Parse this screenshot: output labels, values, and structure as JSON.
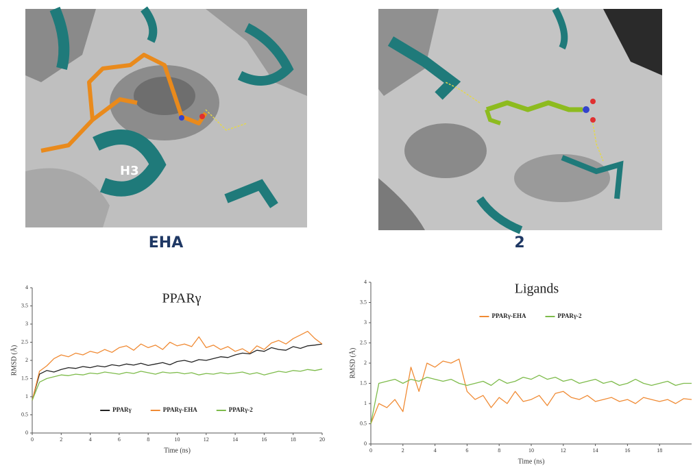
{
  "panels": [
    {
      "label": "EHA",
      "annotation": "H3"
    },
    {
      "label": "2"
    }
  ],
  "chart_data": [
    {
      "type": "line",
      "title": "PPARγ",
      "x_label": "Time (ns)",
      "y_label": "RMSD (Å)",
      "x": [
        0,
        0.5,
        1,
        1.5,
        2,
        2.5,
        3,
        3.5,
        4,
        4.5,
        5,
        5.5,
        6,
        6.5,
        7,
        7.5,
        8,
        8.5,
        9,
        9.5,
        10,
        10.5,
        11,
        11.5,
        12,
        12.5,
        13,
        13.5,
        14,
        14.5,
        15,
        15.5,
        16,
        16.5,
        17,
        17.5,
        18,
        18.5,
        19,
        19.5,
        20
      ],
      "series": [
        {
          "name": "PPARγ",
          "color": "#222222",
          "values": [
            0.9,
            1.62,
            1.72,
            1.68,
            1.75,
            1.8,
            1.78,
            1.83,
            1.8,
            1.85,
            1.82,
            1.88,
            1.85,
            1.9,
            1.87,
            1.92,
            1.86,
            1.9,
            1.94,
            1.88,
            1.97,
            2.0,
            1.95,
            2.02,
            2.0,
            2.05,
            2.1,
            2.08,
            2.15,
            2.2,
            2.18,
            2.28,
            2.25,
            2.35,
            2.3,
            2.28,
            2.38,
            2.33,
            2.4,
            2.42,
            2.45
          ]
        },
        {
          "name": "PPARγ-EHA",
          "color": "#f08a33",
          "values": [
            0.9,
            1.7,
            1.85,
            2.05,
            2.15,
            2.1,
            2.2,
            2.15,
            2.25,
            2.2,
            2.3,
            2.22,
            2.35,
            2.4,
            2.28,
            2.45,
            2.35,
            2.42,
            2.3,
            2.5,
            2.4,
            2.45,
            2.38,
            2.65,
            2.35,
            2.42,
            2.3,
            2.38,
            2.25,
            2.32,
            2.2,
            2.4,
            2.3,
            2.48,
            2.55,
            2.45,
            2.6,
            2.7,
            2.8,
            2.6,
            2.45
          ]
        },
        {
          "name": "PPARγ-2",
          "color": "#7dbb4a",
          "values": [
            0.9,
            1.4,
            1.5,
            1.55,
            1.6,
            1.58,
            1.62,
            1.6,
            1.65,
            1.63,
            1.68,
            1.65,
            1.62,
            1.67,
            1.64,
            1.7,
            1.66,
            1.62,
            1.68,
            1.65,
            1.67,
            1.63,
            1.66,
            1.6,
            1.64,
            1.62,
            1.66,
            1.63,
            1.65,
            1.68,
            1.62,
            1.66,
            1.6,
            1.65,
            1.7,
            1.67,
            1.72,
            1.7,
            1.75,
            1.72,
            1.76
          ]
        }
      ],
      "xlim": [
        0,
        20
      ],
      "xticks": [
        0,
        2,
        4,
        6,
        8,
        10,
        12,
        14,
        16,
        18,
        20
      ],
      "ylim": [
        0,
        4
      ],
      "yticks": [
        0,
        0.5,
        1,
        1.5,
        2,
        2.5,
        3,
        3.5,
        4
      ],
      "grid": false,
      "legend": "lower center"
    },
    {
      "type": "line",
      "title": "Ligands",
      "x_label": "Time (ns)",
      "y_label": "RMSD (Å)",
      "x": [
        0,
        0.5,
        1,
        1.5,
        2,
        2.5,
        3,
        3.5,
        4,
        4.5,
        5,
        5.5,
        6,
        6.5,
        7,
        7.5,
        8,
        8.5,
        9,
        9.5,
        10,
        10.5,
        11,
        11.5,
        12,
        12.5,
        13,
        13.5,
        14,
        14.5,
        15,
        15.5,
        16,
        16.5,
        17,
        17.5,
        18,
        18.5,
        19,
        19.5,
        20
      ],
      "series": [
        {
          "name": "PPARγ-EHA",
          "color": "#f08a33",
          "values": [
            0.5,
            1.0,
            0.9,
            1.1,
            0.8,
            1.9,
            1.3,
            2.0,
            1.9,
            2.05,
            2.0,
            2.1,
            1.3,
            1.1,
            1.2,
            0.9,
            1.15,
            1.0,
            1.3,
            1.05,
            1.1,
            1.2,
            0.95,
            1.25,
            1.3,
            1.15,
            1.1,
            1.2,
            1.05,
            1.1,
            1.15,
            1.05,
            1.1,
            1.0,
            1.15,
            1.1,
            1.05,
            1.1,
            1.0,
            1.12,
            1.1
          ]
        },
        {
          "name": "PPARγ-2",
          "color": "#7dbb4a",
          "values": [
            0.5,
            1.5,
            1.55,
            1.6,
            1.5,
            1.6,
            1.55,
            1.65,
            1.6,
            1.55,
            1.6,
            1.5,
            1.45,
            1.5,
            1.55,
            1.45,
            1.6,
            1.5,
            1.55,
            1.65,
            1.6,
            1.7,
            1.6,
            1.65,
            1.55,
            1.6,
            1.5,
            1.55,
            1.6,
            1.5,
            1.55,
            1.45,
            1.5,
            1.6,
            1.5,
            1.45,
            1.5,
            1.55,
            1.45,
            1.5,
            1.5
          ]
        }
      ],
      "xlim": [
        0,
        20
      ],
      "xticks": [
        0,
        2,
        4,
        6,
        8,
        10,
        12,
        14,
        16,
        18
      ],
      "ylim": [
        0,
        4
      ],
      "yticks": [
        0,
        0.5,
        1,
        1.5,
        2,
        2.5,
        3,
        3.5,
        4
      ],
      "grid": false,
      "legend": "upper center"
    }
  ]
}
